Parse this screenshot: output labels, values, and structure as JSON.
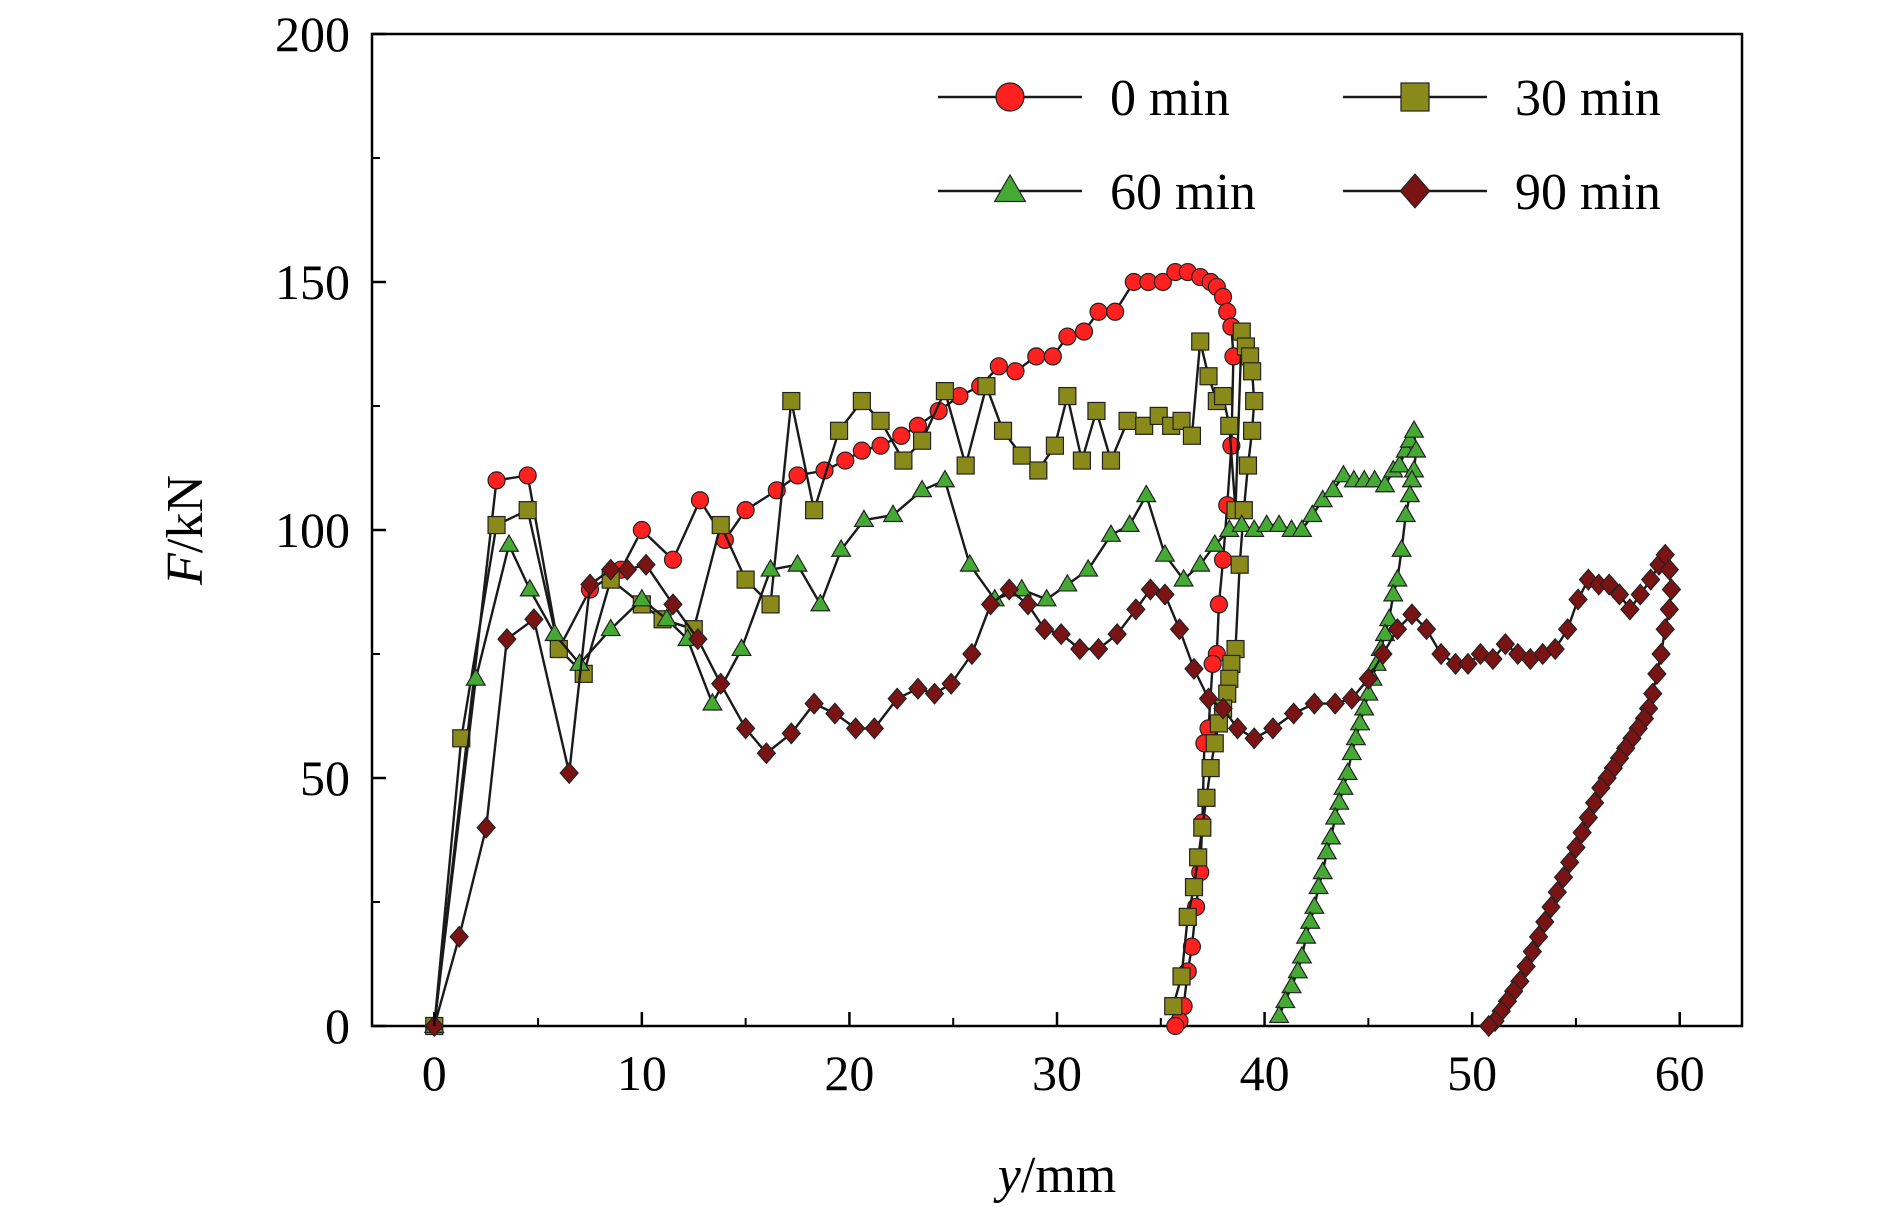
{
  "chart_data": {
    "type": "line",
    "xlabel": {
      "italic": "y",
      "rest": "/mm"
    },
    "ylabel": {
      "italic": "F",
      "rest": "/kN"
    },
    "xlim": [
      -3,
      63
    ],
    "ylim": [
      0,
      200
    ],
    "xticks": [
      0,
      10,
      20,
      30,
      40,
      50,
      60
    ],
    "yticks": [
      0,
      50,
      100,
      150,
      200
    ],
    "grid": false,
    "legend_position": "top-right",
    "series": [
      {
        "name": "0 min",
        "marker": "circle",
        "color": "#ff2020",
        "x": [
          0,
          3,
          4.5,
          6,
          7.5,
          9,
          10,
          11.5,
          12.8,
          14,
          15,
          16.5,
          17.5,
          18.8,
          19.8,
          20.6,
          21.5,
          22.5,
          23.3,
          24.3,
          25.3,
          26.3,
          27.2,
          28,
          29,
          29.8,
          30.5,
          31.3,
          32,
          32.8,
          33.7,
          34.4,
          35.1,
          35.7,
          36.3,
          36.9,
          37.4,
          37.7,
          38,
          38.2,
          38.4,
          38.5,
          38.4,
          38.2,
          38,
          37.8,
          37.7,
          37.5,
          37.3,
          37.1,
          37,
          36.9,
          36.7,
          36.5,
          36.3,
          36.1,
          35.9,
          35.7
        ],
        "y": [
          0,
          110,
          111,
          76,
          88,
          92,
          100,
          94,
          106,
          98,
          104,
          108,
          111,
          112,
          114,
          116,
          117,
          119,
          121,
          124,
          127,
          129,
          133,
          132,
          135,
          135,
          139,
          140,
          144,
          144,
          150,
          150,
          150,
          152,
          152,
          151,
          150,
          149,
          147,
          144,
          141,
          135,
          117,
          105,
          94,
          85,
          75,
          73,
          60,
          57,
          41,
          31,
          24,
          16,
          11,
          4,
          1,
          0
        ]
      },
      {
        "name": "30 min",
        "marker": "square",
        "color": "#8a8a1a",
        "x": [
          0,
          1.3,
          3,
          4.5,
          6,
          7.2,
          8.5,
          10,
          11,
          12.5,
          13.8,
          15,
          16.2,
          17.2,
          18.3,
          19.5,
          20.6,
          21.5,
          22.6,
          23.5,
          24.6,
          25.6,
          26.6,
          27.4,
          28.3,
          29.1,
          29.9,
          30.5,
          31.2,
          31.9,
          32.6,
          33.4,
          34.2,
          34.9,
          35.5,
          36,
          36.5,
          36.9,
          37.3,
          37.7,
          38,
          38.3,
          38.6,
          38.9,
          39.1,
          39.3,
          39.4,
          39.5,
          39.4,
          39.2,
          39,
          38.8,
          38.6,
          38.4,
          38.3,
          38.2,
          38,
          37.8,
          37.6,
          37.4,
          37.2,
          37,
          36.8,
          36.6,
          36.3,
          36,
          35.6
        ],
        "y": [
          0,
          58,
          101,
          104,
          76,
          71,
          90,
          85,
          82,
          80,
          101,
          90,
          85,
          126,
          104,
          120,
          126,
          122,
          114,
          118,
          128,
          113,
          129,
          120,
          115,
          112,
          117,
          127,
          114,
          124,
          114,
          122,
          121,
          123,
          121,
          122,
          119,
          138,
          131,
          126,
          127,
          121,
          104,
          140,
          137,
          135,
          132,
          126,
          120,
          113,
          104,
          93,
          76,
          73,
          70,
          67,
          64,
          61,
          57,
          52,
          46,
          40,
          34,
          28,
          22,
          10,
          4
        ]
      },
      {
        "name": "60 min",
        "marker": "triangle",
        "color": "#44aa33",
        "x": [
          0,
          2,
          3.6,
          4.6,
          5.8,
          7,
          8.5,
          10,
          11.2,
          12.2,
          13.4,
          14.8,
          16.2,
          17.5,
          18.6,
          19.6,
          20.7,
          22.1,
          23.5,
          24.6,
          25.8,
          27,
          28.3,
          29.5,
          30.5,
          31.5,
          32.6,
          33.5,
          34.3,
          35.2,
          36.1,
          36.9,
          37.6,
          38.3,
          38.9,
          39.5,
          40.1,
          40.7,
          41.3,
          41.8,
          42.3,
          42.8,
          43.3,
          43.8,
          44.3,
          44.8,
          45.3,
          45.8,
          46.2,
          46.5,
          46.8,
          47,
          47.2,
          47.3,
          47.2,
          47.1,
          47,
          46.8,
          46.6,
          46.4,
          46.2,
          46,
          45.8,
          45.6,
          45.4,
          45.2,
          45,
          44.8,
          44.6,
          44.4,
          44.2,
          44,
          43.8,
          43.6,
          43.4,
          43.2,
          43,
          42.8,
          42.6,
          42.4,
          42.2,
          42,
          41.8,
          41.6,
          41.3,
          41,
          40.7
        ],
        "y": [
          0,
          70,
          97,
          88,
          79,
          73,
          80,
          86,
          82,
          78,
          65,
          76,
          92,
          93,
          85,
          96,
          102,
          103,
          108,
          110,
          93,
          86,
          88,
          86,
          89,
          92,
          99,
          101,
          107,
          95,
          90,
          93,
          97,
          100,
          101,
          100,
          101,
          101,
          100,
          100,
          103,
          106,
          108,
          111,
          110,
          110,
          110,
          109,
          112,
          113,
          116,
          118,
          120,
          116,
          112,
          110,
          107,
          103,
          96,
          90,
          87,
          82,
          79,
          76,
          73,
          70,
          67,
          64,
          61,
          58,
          55,
          51,
          48,
          45,
          42,
          38,
          35,
          31,
          28,
          24,
          21,
          18,
          14,
          11,
          8,
          5,
          2
        ]
      },
      {
        "name": "90 min",
        "marker": "diamond",
        "color": "#7a1414",
        "x": [
          0,
          1.2,
          2.5,
          3.5,
          4.8,
          6.5,
          7.5,
          8.5,
          9.3,
          10.2,
          11.5,
          12.7,
          13.8,
          15,
          16,
          17.2,
          18.3,
          19.3,
          20.3,
          21.2,
          22.3,
          23.3,
          24.1,
          24.9,
          25.9,
          26.8,
          27.7,
          28.6,
          29.4,
          30.2,
          31.1,
          32,
          32.9,
          33.8,
          34.5,
          35.2,
          35.9,
          36.6,
          37.3,
          38,
          38.7,
          39.5,
          40.4,
          41.4,
          42.4,
          43.4,
          44.2,
          45,
          45.7,
          46.4,
          47.1,
          47.8,
          48.5,
          49.2,
          49.8,
          50.4,
          51,
          51.6,
          52.2,
          52.8,
          53.4,
          54,
          54.6,
          55.1,
          55.6,
          56.1,
          56.6,
          57.1,
          57.6,
          58.1,
          58.6,
          59,
          59.3,
          59.5,
          59.6,
          59.5,
          59.3,
          59.1,
          58.9,
          58.7,
          58.5,
          58.3,
          58,
          57.7,
          57.4,
          57.1,
          56.8,
          56.5,
          56.2,
          55.9,
          55.6,
          55.3,
          55,
          54.7,
          54.4,
          54.1,
          53.8,
          53.5,
          53.2,
          52.9,
          52.6,
          52.3,
          52,
          51.7,
          51.4,
          51.1,
          50.8
        ],
        "y": [
          0,
          18,
          40,
          78,
          82,
          51,
          89,
          92,
          92,
          93,
          85,
          78,
          69,
          60,
          55,
          59,
          65,
          63,
          60,
          60,
          66,
          68,
          67,
          69,
          75,
          85,
          88,
          85,
          80,
          79,
          76,
          76,
          79,
          84,
          88,
          87,
          80,
          72,
          66,
          64,
          60,
          58,
          60,
          63,
          65,
          65,
          66,
          70,
          75,
          80,
          83,
          80,
          75,
          73,
          73,
          75,
          74,
          77,
          75,
          74,
          75,
          76,
          80,
          86,
          90,
          89,
          89,
          87,
          84,
          87,
          90,
          93,
          95,
          92,
          88,
          84,
          80,
          75,
          71,
          67,
          64,
          62,
          60,
          58,
          56,
          54,
          52,
          50,
          48,
          45,
          42,
          39,
          36,
          33,
          30,
          27,
          24,
          21,
          18,
          15,
          12,
          9,
          7,
          5,
          3,
          1,
          0
        ]
      }
    ]
  }
}
